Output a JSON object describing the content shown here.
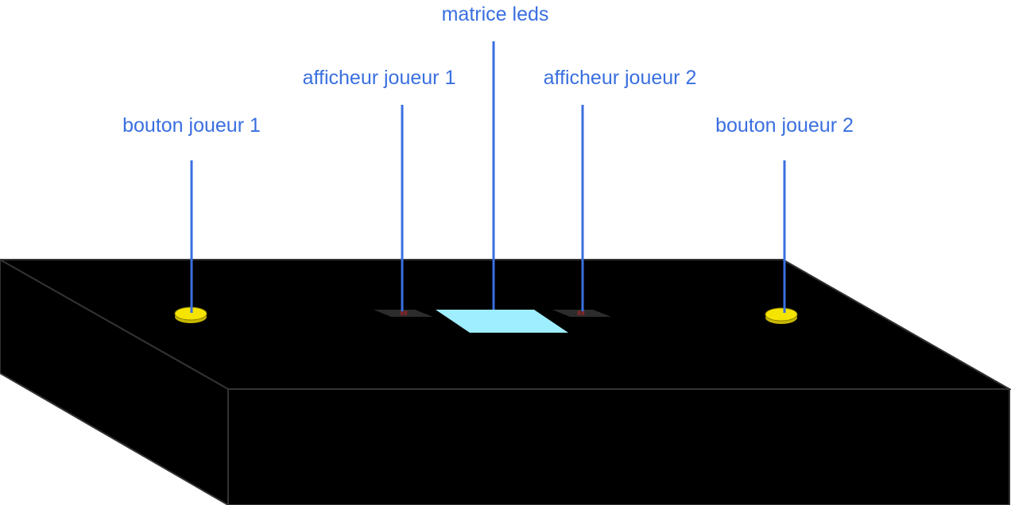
{
  "colors": {
    "label": "#3a6fe0",
    "leader": "#3a6fe0",
    "box": "#000000",
    "edge": "#333333",
    "button": "#f5e400",
    "matrix": "#9eeeff",
    "display": "#2c2c2c",
    "digit": "#d42020"
  },
  "labels": {
    "matrix": "matrice leds",
    "display_player_1": "afficheur joueur 1",
    "display_player_2": "afficheur joueur 2",
    "button_player_1": "bouton joueur 1",
    "button_player_2": "bouton joueur 2"
  },
  "display_player_1": {
    "digits": "88"
  },
  "display_player_2": {
    "digits": "88"
  }
}
